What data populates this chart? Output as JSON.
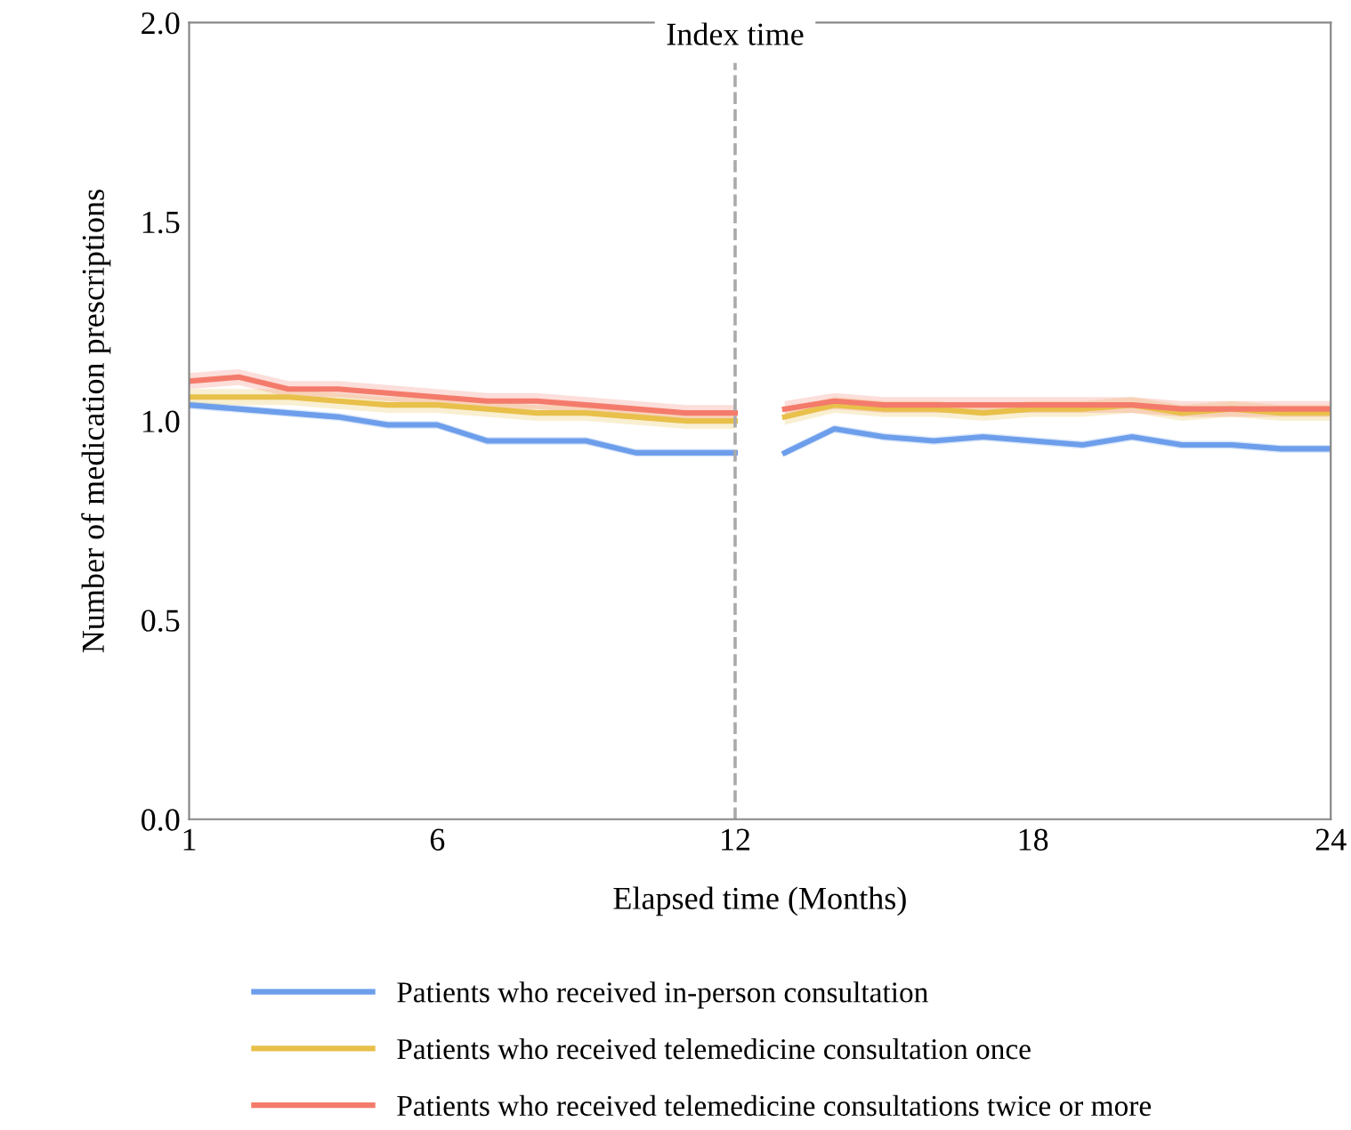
{
  "chart_data": {
    "type": "line",
    "xlabel": "Elapsed time (Months)",
    "ylabel": "Number of medication prescriptions",
    "x": [
      1,
      2,
      3,
      4,
      5,
      6,
      7,
      8,
      9,
      10,
      11,
      12,
      12.5,
      13,
      14,
      15,
      16,
      17,
      18,
      19,
      20,
      21,
      22,
      23,
      24
    ],
    "series": [
      {
        "name": "Patients who received in-person consultation",
        "color": "#6d9eeb",
        "values": [
          1.04,
          1.03,
          1.02,
          1.01,
          0.99,
          0.99,
          0.95,
          0.95,
          0.95,
          0.92,
          0.92,
          0.92,
          null,
          0.92,
          0.98,
          0.96,
          0.95,
          0.96,
          0.95,
          0.94,
          0.96,
          0.94,
          0.94,
          0.93,
          0.93
        ],
        "lower": [
          1.03,
          1.02,
          1.01,
          1.0,
          0.98,
          0.98,
          0.94,
          0.94,
          0.94,
          0.91,
          0.91,
          0.91,
          null,
          0.91,
          0.97,
          0.95,
          0.94,
          0.95,
          0.94,
          0.93,
          0.95,
          0.93,
          0.93,
          0.92,
          0.92
        ],
        "upper": [
          1.05,
          1.04,
          1.03,
          1.02,
          1.0,
          1.0,
          0.96,
          0.96,
          0.96,
          0.93,
          0.93,
          0.93,
          null,
          0.93,
          0.99,
          0.97,
          0.96,
          0.97,
          0.96,
          0.95,
          0.97,
          0.95,
          0.95,
          0.94,
          0.94
        ]
      },
      {
        "name": "Patients who received telemedicine consultation once",
        "color": "#e8c04a",
        "values": [
          1.06,
          1.06,
          1.06,
          1.05,
          1.04,
          1.04,
          1.03,
          1.02,
          1.02,
          1.01,
          1.0,
          1.0,
          null,
          1.01,
          1.04,
          1.03,
          1.03,
          1.02,
          1.03,
          1.03,
          1.04,
          1.02,
          1.03,
          1.02,
          1.02
        ],
        "lower": [
          1.04,
          1.04,
          1.04,
          1.03,
          1.02,
          1.02,
          1.01,
          1.0,
          1.0,
          0.99,
          0.98,
          0.98,
          null,
          0.99,
          1.02,
          1.01,
          1.01,
          1.0,
          1.01,
          1.01,
          1.02,
          1.0,
          1.01,
          1.0,
          1.0
        ],
        "upper": [
          1.08,
          1.08,
          1.08,
          1.07,
          1.06,
          1.06,
          1.05,
          1.04,
          1.04,
          1.03,
          1.02,
          1.02,
          null,
          1.03,
          1.06,
          1.05,
          1.05,
          1.04,
          1.05,
          1.05,
          1.06,
          1.04,
          1.05,
          1.04,
          1.04
        ]
      },
      {
        "name": "Patients who received telemedicine consultations twice or more",
        "color": "#f47b6b",
        "values": [
          1.1,
          1.11,
          1.08,
          1.08,
          1.07,
          1.06,
          1.05,
          1.05,
          1.04,
          1.03,
          1.02,
          1.02,
          null,
          1.03,
          1.05,
          1.04,
          1.04,
          1.04,
          1.04,
          1.04,
          1.04,
          1.03,
          1.03,
          1.03,
          1.03
        ],
        "lower": [
          1.08,
          1.09,
          1.06,
          1.06,
          1.05,
          1.04,
          1.03,
          1.03,
          1.02,
          1.01,
          1.0,
          1.0,
          null,
          1.01,
          1.03,
          1.02,
          1.02,
          1.02,
          1.02,
          1.02,
          1.02,
          1.01,
          1.01,
          1.01,
          1.01
        ],
        "upper": [
          1.12,
          1.13,
          1.1,
          1.1,
          1.09,
          1.08,
          1.07,
          1.07,
          1.06,
          1.05,
          1.04,
          1.04,
          null,
          1.05,
          1.07,
          1.06,
          1.06,
          1.06,
          1.06,
          1.06,
          1.06,
          1.05,
          1.05,
          1.05,
          1.05
        ]
      }
    ],
    "xlim": [
      1,
      24
    ],
    "xticks": [
      1,
      6,
      12,
      18,
      24
    ],
    "ylim": [
      0,
      2
    ],
    "yticks": [
      {
        "value": 0,
        "label": "0.0"
      },
      {
        "value": 0.5,
        "label": "0.5"
      },
      {
        "value": 1,
        "label": "1.0"
      },
      {
        "value": 1.5,
        "label": "1.5"
      },
      {
        "value": 2,
        "label": "2.0"
      }
    ],
    "ref_lines": [
      {
        "axis": "x",
        "value": 12,
        "label": "Index time",
        "color": "#aaaaaa",
        "line_style": "dashed"
      }
    ],
    "grid": false,
    "legend": "bottom",
    "marker": "none",
    "line_style": "solid"
  }
}
